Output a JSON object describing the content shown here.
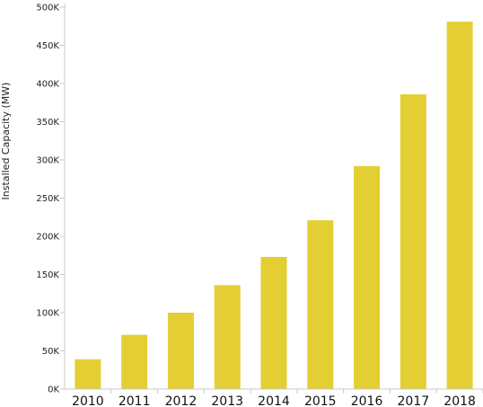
{
  "chart_data": {
    "type": "bar",
    "title": "",
    "xlabel": "",
    "ylabel": "Installed Capacity (MW)",
    "categories": [
      "2010",
      "2011",
      "2012",
      "2013",
      "2014",
      "2015",
      "2016",
      "2017",
      "2018"
    ],
    "series": [
      {
        "values": [
          39000,
          71000,
          100000,
          136000,
          173000,
          221000,
          292000,
          386000,
          481000
        ]
      }
    ],
    "ylim": [
      0,
      500000
    ],
    "yticks": [
      0,
      50000,
      100000,
      150000,
      200000,
      250000,
      300000,
      350000,
      400000,
      450000,
      500000
    ],
    "ytick_labels": [
      "0K",
      "50K",
      "100K",
      "150K",
      "200K",
      "250K",
      "300K",
      "350K",
      "400K",
      "450K",
      "500K"
    ],
    "grid": false,
    "legend": "none",
    "bar_color": "#e3cf33",
    "axis_color": "#c8c8c8"
  }
}
